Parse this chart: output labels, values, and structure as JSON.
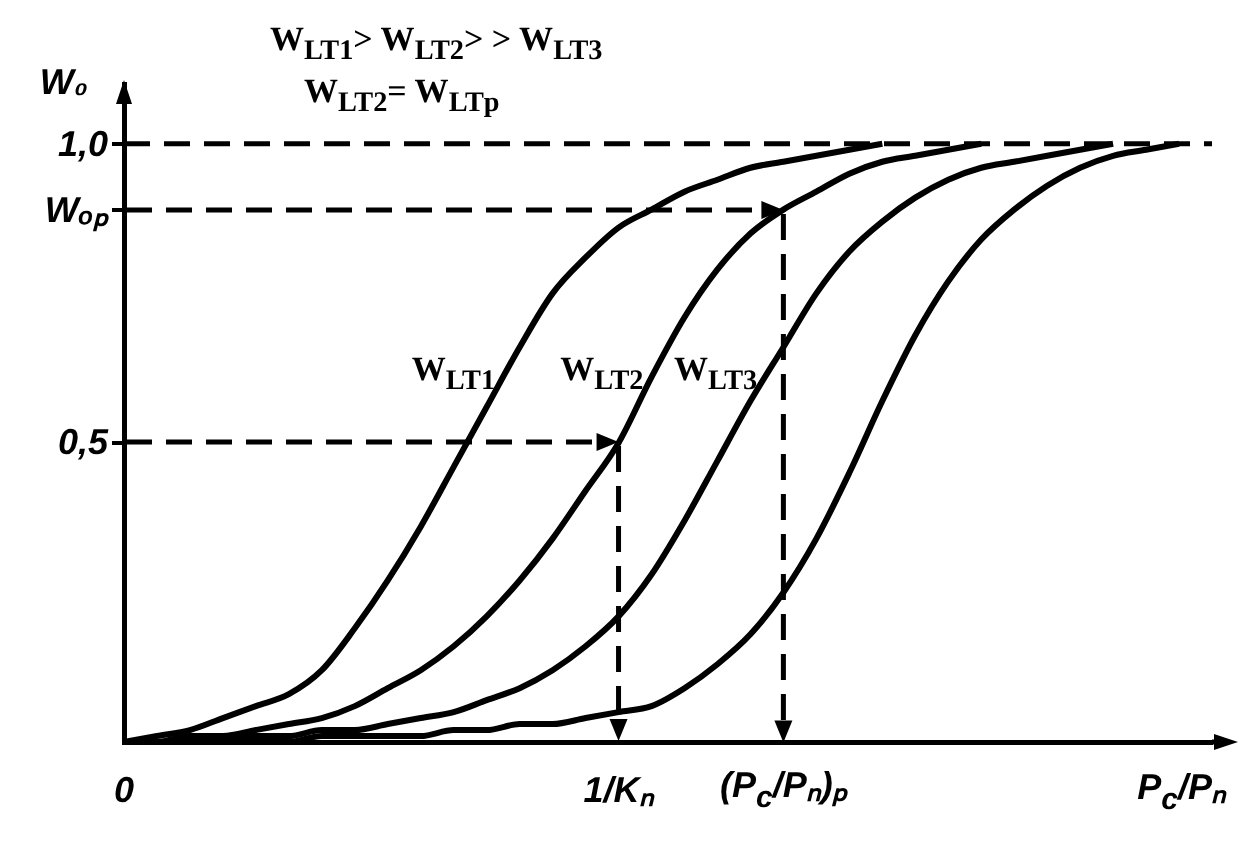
{
  "chart_data": {
    "type": "line",
    "annotations": [
      "W$_{LT1}$> W$_{LT2}$> > W$_{LT3}$",
      "W$_{LT2}$= W$_{LTp}$"
    ],
    "xlabel": "P$_{c}$/Pₙ",
    "ylabel": "W₀",
    "categories": [
      "0",
      null,
      null,
      null,
      null,
      null,
      null,
      null,
      null,
      null,
      null,
      null,
      null,
      null,
      null,
      "1/Kₙ",
      null,
      null,
      null,
      null,
      "(P$_{c}$/Pₙ)ₚ",
      null,
      null,
      null,
      null,
      null,
      null,
      null,
      null,
      null,
      null,
      null,
      null,
      null
    ],
    "ylim": [
      0,
      1.1
    ],
    "yticks": [
      {
        "value": 0.5,
        "label": "0,5"
      },
      {
        "value": 0.89,
        "label": "Wₒₚ"
      },
      {
        "value": 1,
        "label": "1,0"
      }
    ],
    "ref_lines": [
      {
        "axis": "y",
        "value": 1,
        "line_style": "dashed"
      }
    ],
    "series": [
      {
        "name": "W$_{LT1}$",
        "color": "#000000",
        "values": [
          0,
          0.01,
          0.02,
          0.04,
          0.06,
          0.08,
          0.12,
          0.19,
          0.27,
          0.36,
          0.46,
          0.56,
          0.66,
          0.75,
          0.81,
          0.86,
          0.89,
          0.92,
          0.94,
          0.96,
          0.97,
          0.98,
          0.99,
          1,
          null,
          null,
          null,
          null,
          null,
          null,
          null,
          null,
          null,
          null
        ]
      },
      {
        "name": "W$_{LT2}$",
        "color": "#000000",
        "values": [
          0,
          0,
          0.01,
          0.01,
          0.02,
          0.03,
          0.04,
          0.06,
          0.09,
          0.12,
          0.16,
          0.21,
          0.27,
          0.34,
          0.42,
          0.5,
          0.61,
          0.71,
          0.79,
          0.85,
          0.89,
          0.92,
          0.95,
          0.97,
          0.98,
          0.99,
          1,
          null,
          null,
          null,
          null,
          null,
          null,
          null
        ]
      },
      {
        "name": "W$_{LT3}$",
        "color": "#000000",
        "values": [
          0,
          0,
          0,
          0.01,
          0.01,
          0.01,
          0.02,
          0.02,
          0.03,
          0.04,
          0.05,
          0.07,
          0.09,
          0.12,
          0.16,
          0.21,
          0.28,
          0.37,
          0.47,
          0.57,
          0.66,
          0.75,
          0.82,
          0.87,
          0.91,
          0.94,
          0.96,
          0.97,
          0.98,
          0.99,
          1,
          null,
          null,
          null
        ]
      },
      {
        "color": "#000000",
        "values": [
          0,
          0,
          0,
          0,
          0,
          0,
          0.01,
          0.01,
          0.01,
          0.01,
          0.02,
          0.02,
          0.03,
          0.03,
          0.04,
          0.05,
          0.06,
          0.09,
          0.13,
          0.18,
          0.25,
          0.34,
          0.45,
          0.57,
          0.68,
          0.77,
          0.84,
          0.89,
          0.93,
          0.96,
          0.98,
          0.99,
          1,
          null
        ]
      }
    ]
  }
}
